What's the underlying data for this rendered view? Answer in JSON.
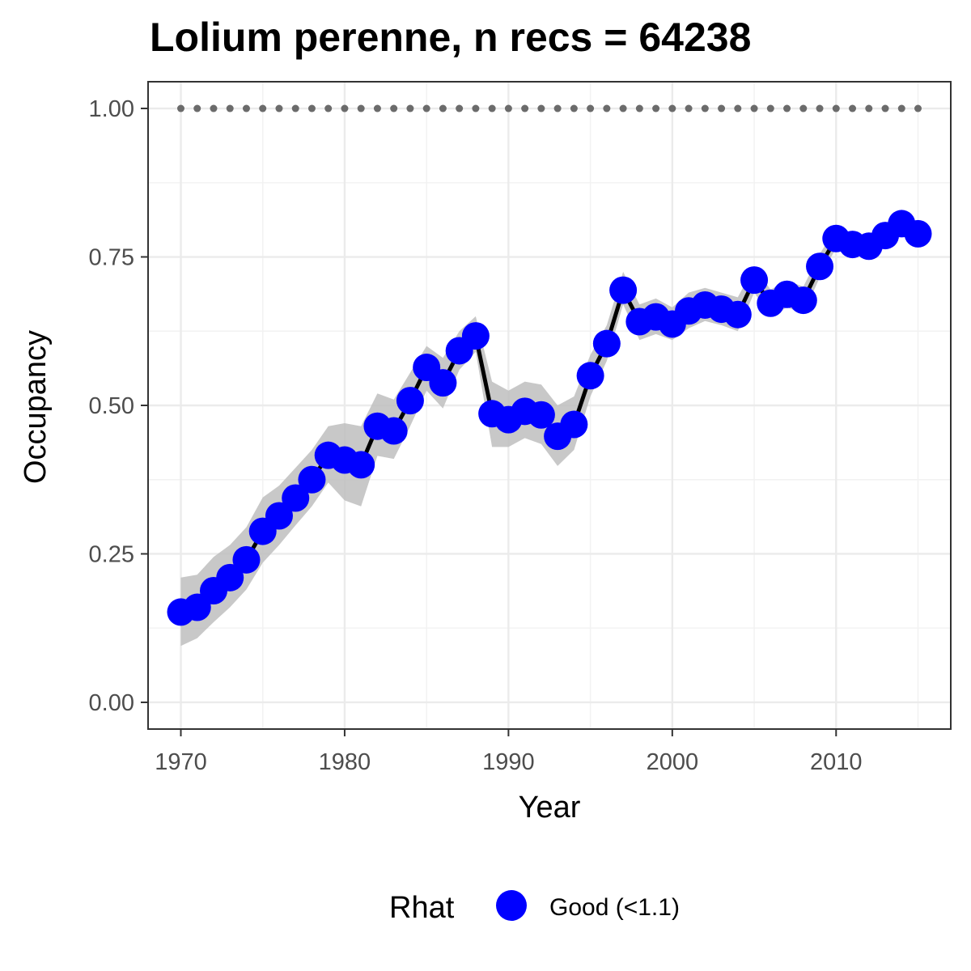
{
  "chart_data": {
    "type": "line",
    "title": "Lolium perenne, n recs = 64238",
    "xlabel": "Year",
    "ylabel": "Occupancy",
    "xlim": [
      1968,
      2017
    ],
    "ylim": [
      -0.045,
      1.045
    ],
    "x_ticks": [
      1970,
      1980,
      1990,
      2000,
      2010
    ],
    "x_tick_labels": [
      "1970",
      "1980",
      "1990",
      "2000",
      "2010"
    ],
    "y_ticks": [
      0,
      0.25,
      0.5,
      0.75,
      1.0
    ],
    "y_tick_labels": [
      "0.00",
      "0.25",
      "0.50",
      "0.75",
      "1.00"
    ],
    "grid": true,
    "legend": {
      "title": "Rhat",
      "position": "bottom",
      "entries": [
        {
          "label": "Good (<1.1)",
          "color": "#0000ff"
        }
      ]
    },
    "x": [
      1970,
      1971,
      1972,
      1973,
      1974,
      1975,
      1976,
      1977,
      1978,
      1979,
      1980,
      1981,
      1982,
      1983,
      1984,
      1985,
      1986,
      1987,
      1988,
      1989,
      1990,
      1991,
      1992,
      1993,
      1994,
      1995,
      1996,
      1997,
      1998,
      1999,
      2000,
      2001,
      2002,
      2003,
      2004,
      2005,
      2006,
      2007,
      2008,
      2009,
      2010,
      2011,
      2012,
      2013,
      2014,
      2015
    ],
    "series": [
      {
        "name": "Good (<1.1)",
        "color": "#0000ff",
        "values": [
          0.152,
          0.16,
          0.188,
          0.21,
          0.24,
          0.288,
          0.314,
          0.344,
          0.375,
          0.416,
          0.408,
          0.4,
          0.465,
          0.457,
          0.508,
          0.564,
          0.538,
          0.592,
          0.617,
          0.486,
          0.476,
          0.49,
          0.484,
          0.448,
          0.468,
          0.55,
          0.604,
          0.694,
          0.641,
          0.649,
          0.637,
          0.659,
          0.669,
          0.662,
          0.653,
          0.711,
          0.672,
          0.687,
          0.677,
          0.734,
          0.781,
          0.771,
          0.768,
          0.786,
          0.806,
          0.789
        ],
        "lower": [
          0.095,
          0.108,
          0.135,
          0.16,
          0.19,
          0.235,
          0.265,
          0.298,
          0.33,
          0.37,
          0.34,
          0.33,
          0.415,
          0.41,
          0.465,
          0.525,
          0.495,
          0.56,
          0.59,
          0.43,
          0.43,
          0.445,
          0.435,
          0.398,
          0.425,
          0.515,
          0.575,
          0.67,
          0.61,
          0.62,
          0.61,
          0.63,
          0.642,
          0.635,
          0.625,
          0.69,
          0.65,
          0.665,
          0.655,
          0.715,
          0.765,
          0.755,
          0.75,
          0.77,
          0.792,
          0.775
        ],
        "upper": [
          0.21,
          0.215,
          0.245,
          0.265,
          0.295,
          0.345,
          0.365,
          0.395,
          0.425,
          0.465,
          0.47,
          0.465,
          0.52,
          0.51,
          0.555,
          0.6,
          0.58,
          0.625,
          0.65,
          0.54,
          0.525,
          0.54,
          0.535,
          0.5,
          0.515,
          0.585,
          0.635,
          0.725,
          0.67,
          0.68,
          0.665,
          0.69,
          0.698,
          0.69,
          0.682,
          0.733,
          0.695,
          0.71,
          0.7,
          0.755,
          0.798,
          0.788,
          0.786,
          0.803,
          0.82,
          0.805
        ]
      }
    ],
    "reference_line": {
      "y": 1.0,
      "style": "dotted",
      "color": "#6b6b6b"
    },
    "ribbon_color": "#bebebe"
  }
}
